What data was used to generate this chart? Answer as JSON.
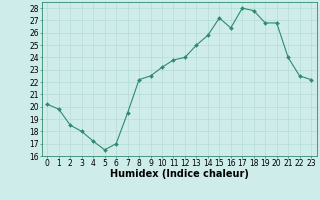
{
  "x": [
    0,
    1,
    2,
    3,
    4,
    5,
    6,
    7,
    8,
    9,
    10,
    11,
    12,
    13,
    14,
    15,
    16,
    17,
    18,
    19,
    20,
    21,
    22,
    23
  ],
  "y": [
    20.2,
    19.8,
    18.5,
    18.0,
    17.2,
    16.5,
    17.0,
    19.5,
    22.2,
    22.5,
    23.2,
    23.8,
    24.0,
    25.0,
    25.8,
    27.2,
    26.4,
    28.0,
    27.8,
    26.8,
    26.8,
    24.0,
    22.5,
    22.2
  ],
  "line_color": "#2e8b6e",
  "marker": "D",
  "marker_size": 2,
  "xlabel": "Humidex (Indice chaleur)",
  "ylim": [
    16,
    28.5
  ],
  "yticks": [
    16,
    17,
    18,
    19,
    20,
    21,
    22,
    23,
    24,
    25,
    26,
    27,
    28
  ],
  "xticks": [
    0,
    1,
    2,
    3,
    4,
    5,
    6,
    7,
    8,
    9,
    10,
    11,
    12,
    13,
    14,
    15,
    16,
    17,
    18,
    19,
    20,
    21,
    22,
    23
  ],
  "xlim": [
    -0.5,
    23.5
  ],
  "bg_color": "#ceecea",
  "grid_color": "#b0d8d4",
  "tick_fontsize": 5.5,
  "xlabel_fontsize": 7.0
}
